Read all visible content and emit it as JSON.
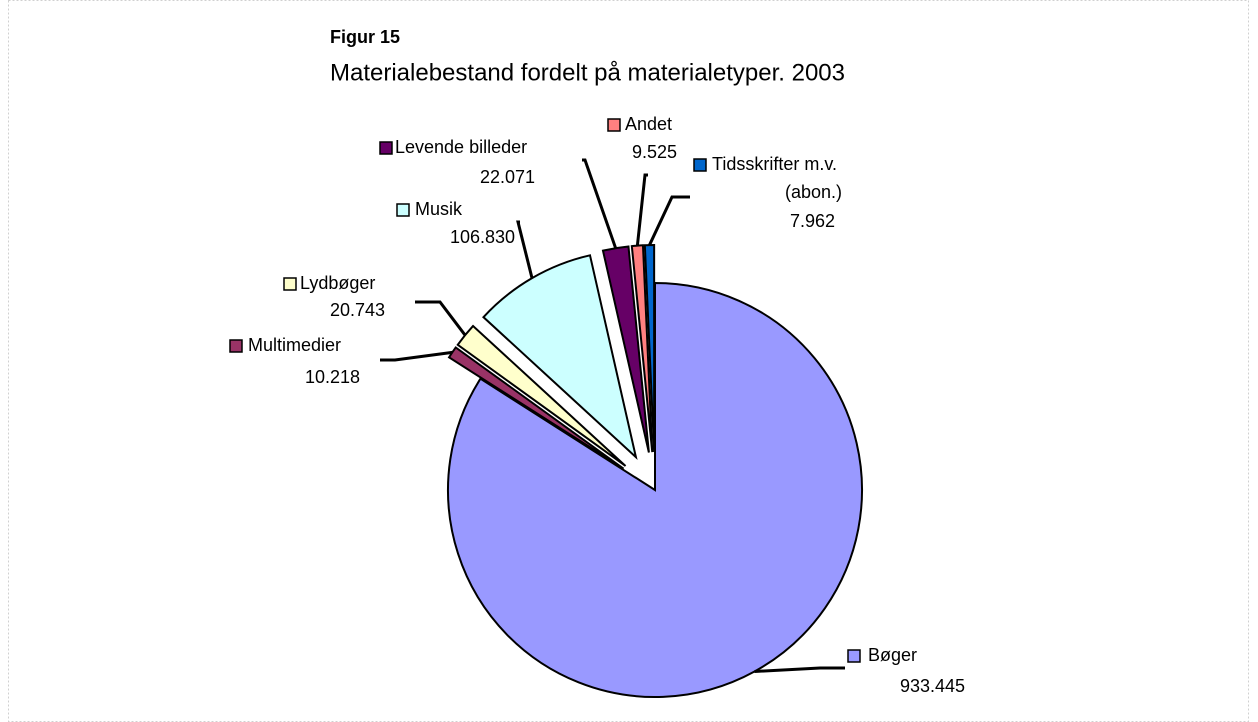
{
  "chart_data": {
    "type": "pie",
    "title": "Figur 15",
    "subtitle": "Materialebestand fordelt på materialetyper. 2003",
    "categories": [
      "Bøger",
      "Multimedier",
      "Lydbøger",
      "Musik",
      "Levende billeder",
      "Andet",
      "Tidsskrifter m.v. (abon.)"
    ],
    "values": [
      933445,
      10218,
      20743,
      106830,
      22071,
      9525,
      7962
    ],
    "value_labels": [
      "933.445",
      "10.218",
      "20.743",
      "106.830",
      "22.071",
      "9.525",
      "7.962"
    ],
    "colors": [
      "#9999ff",
      "#993366",
      "#ffffcc",
      "#ccffff",
      "#660066",
      "#ff8080",
      "#0066cc"
    ]
  }
}
